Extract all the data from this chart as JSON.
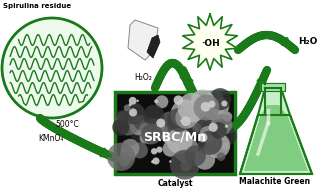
{
  "bg_color": "#ffffff",
  "green_dark": "#1a7a1a",
  "green_mid": "#2db82d",
  "green_light": "#b8f0b8",
  "green_fill": "#a0e0a0",
  "text_color": "#000000",
  "labels": {
    "spirulina": "Spirulina residue",
    "h2o2": "H₂O₂",
    "oh": "·OH",
    "h2o": "H₂O",
    "catalyst_name": "SRBC/Mn",
    "catalyst_label": "Catalyst",
    "malachite_label": "Malachite Green",
    "temp": "500°C",
    "kmno4": "KMnO₄"
  },
  "figsize": [
    3.32,
    1.89
  ],
  "dpi": 100
}
